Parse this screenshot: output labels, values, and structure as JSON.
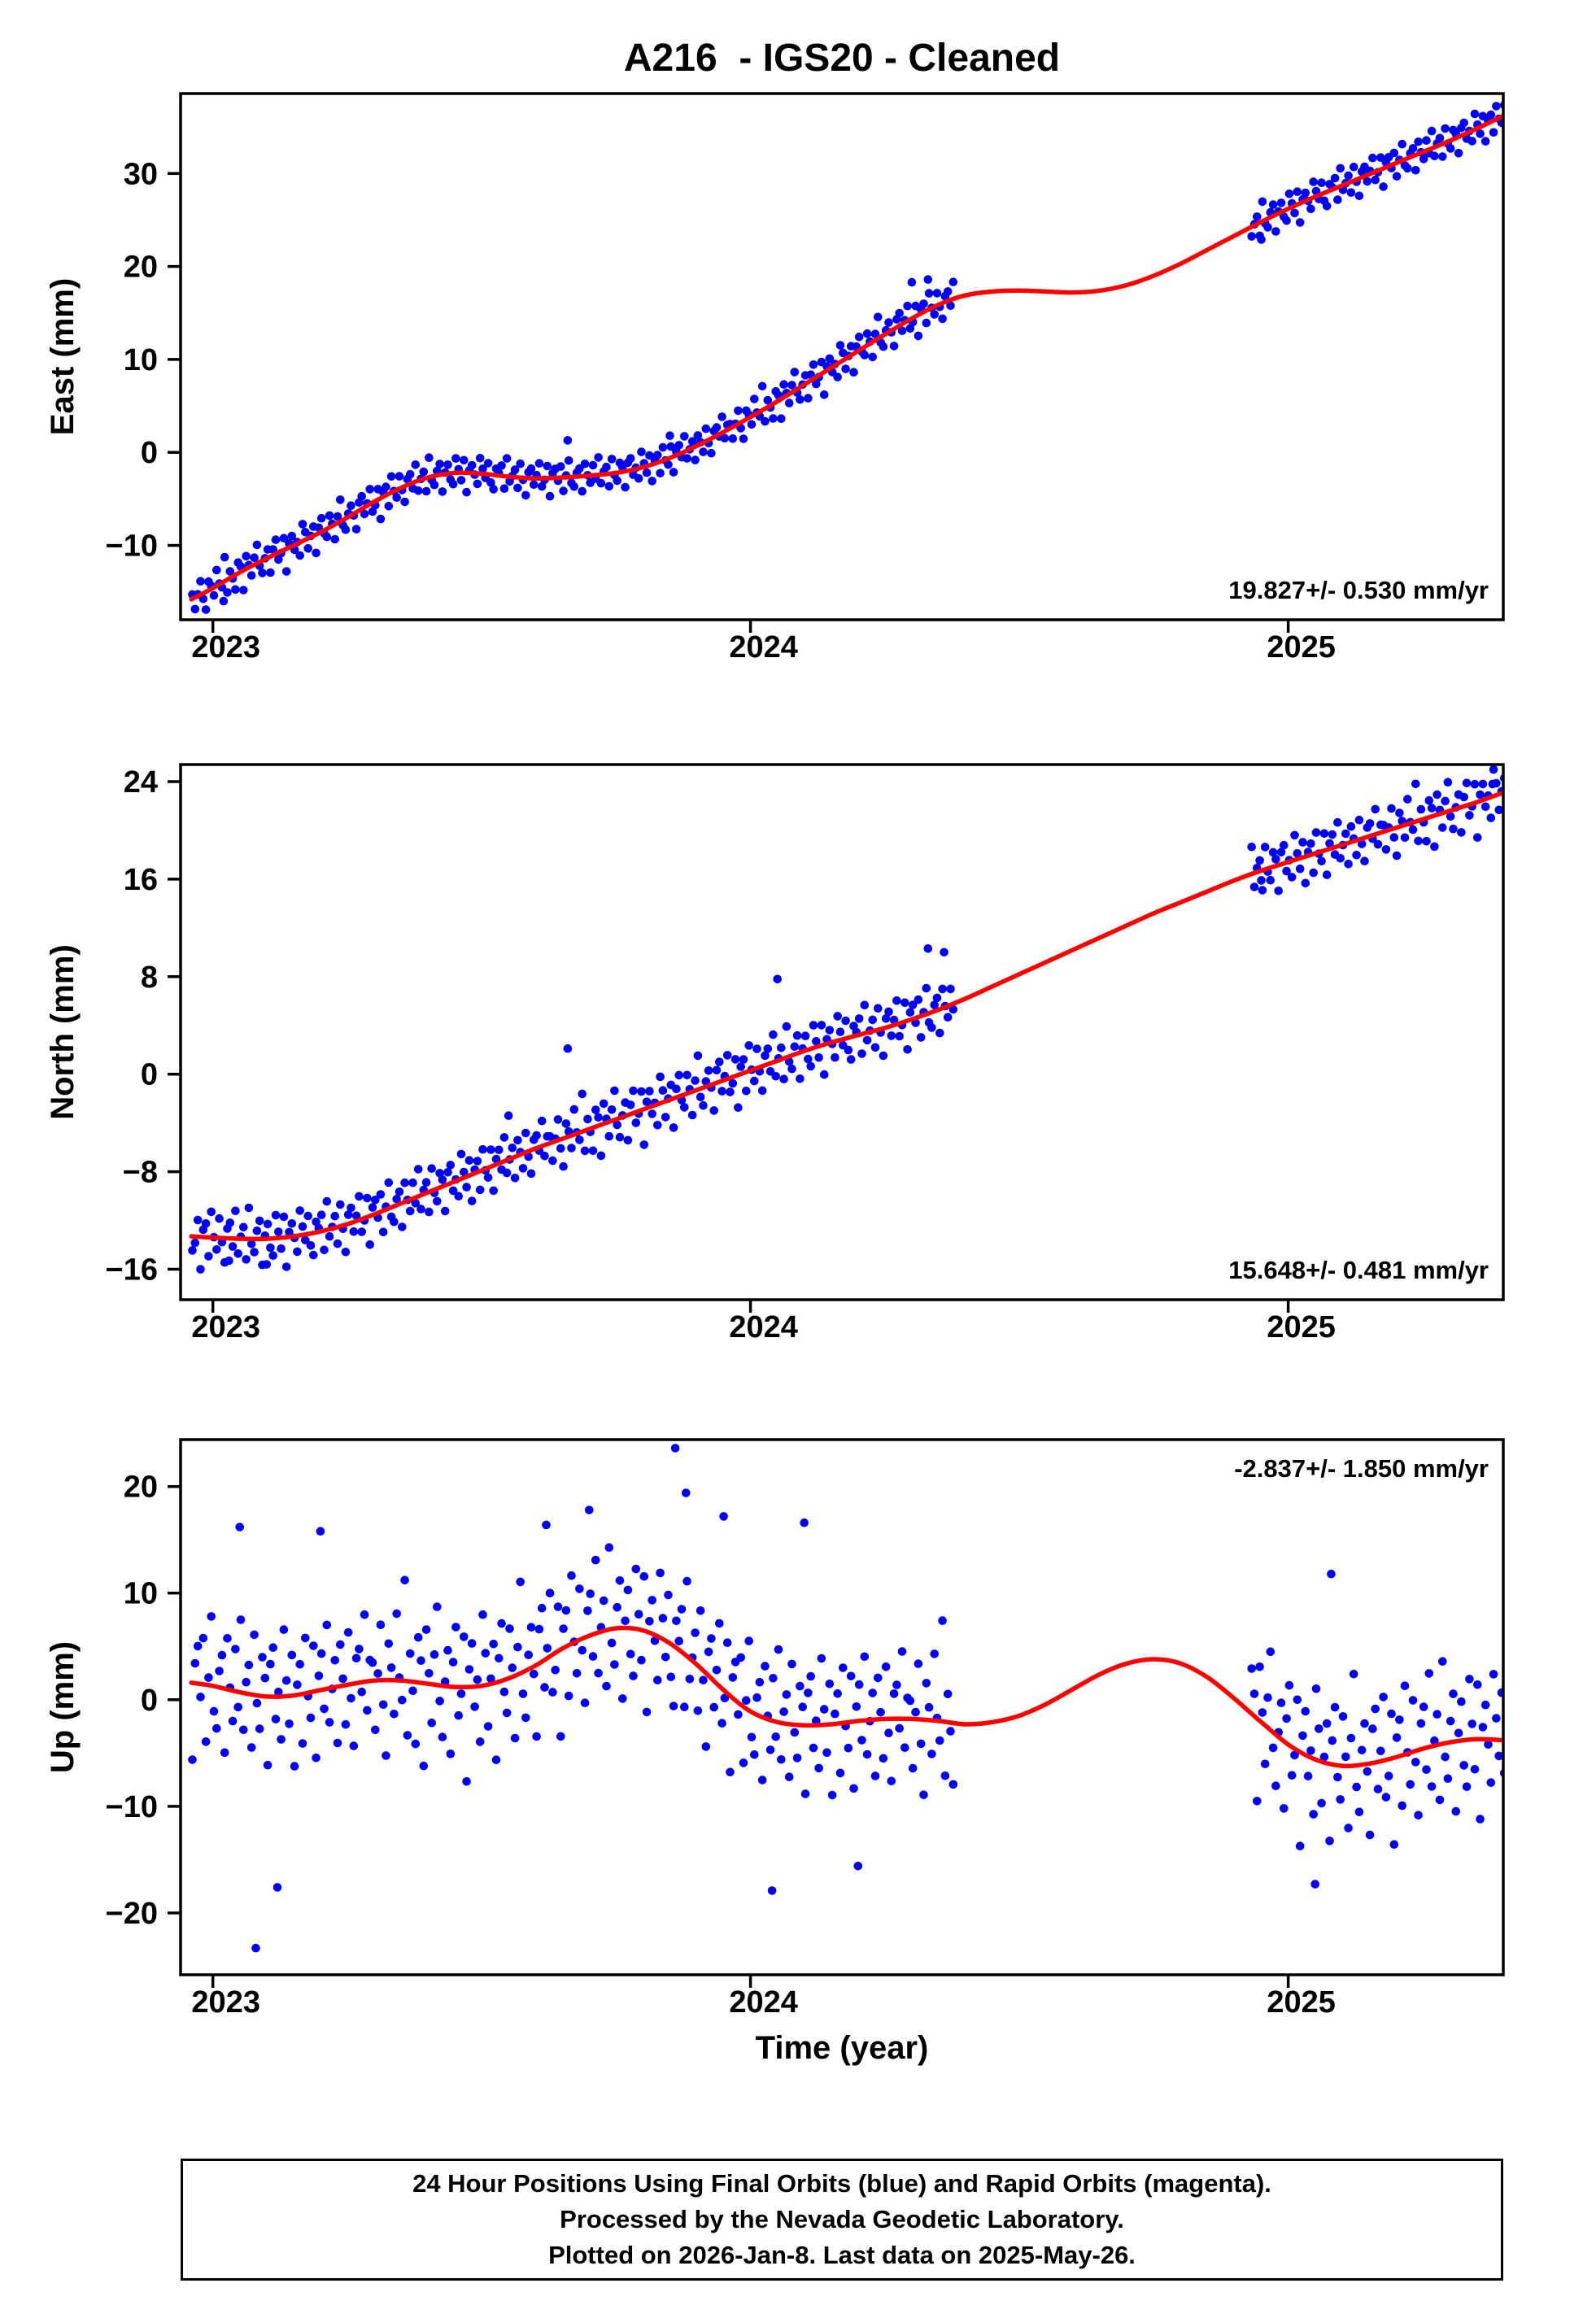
{
  "title": "A216  - IGS20 - Cleaned",
  "xlabel": "Time (year)",
  "footer": {
    "lines": [
      "24 Hour Positions Using Final Orbits (blue) and Rapid Orbits (magenta).",
      "Processed by the Nevada Geodetic Laboratory.",
      "Plotted on 2026-Jan-8. Last data on 2025-May-26."
    ]
  },
  "colors": {
    "points": "#0000EE",
    "line": "#FF0000",
    "frame": "#000000"
  },
  "noise": [
    0.31,
    -0.84,
    0.12,
    0.95,
    -0.41,
    -1.28,
    0.63,
    0.22,
    -0.57,
    1.14,
    0.05,
    -0.33,
    1.72,
    -0.92,
    0.48,
    -0.15,
    -1.05,
    0.77,
    0.38,
    -1.41,
    0.92,
    0.18,
    -0.66,
    0.51,
    1.33,
    -0.27,
    -0.88,
    0.07,
    0.61,
    -1.15,
    0.42,
    1.02,
    -0.49,
    -0.12,
    0.85,
    -1.62,
    0.29,
    0.73,
    -0.35,
    0.11,
    -0.95,
    1.21,
    0.54,
    -0.72,
    0.08,
    0.66,
    -1.33,
    0.39,
    0.97,
    -0.21,
    -0.58,
    0.84,
    0.15,
    -1.07,
    0.46,
    1.55,
    -0.38,
    -0.81,
    0.24,
    0.69,
    -0.13,
    -1.22,
    0.58,
    0.91,
    -0.47,
    0.17,
    1.08,
    -0.64,
    -0.29,
    0.76,
    -1.48,
    0.33,
    0.62,
    -0.86,
    1.17,
    0.02,
    -0.54,
    0.88,
    -0.19,
    -1.11,
    0.44,
    0.71,
    -0.37,
    1.26,
    -0.68,
    0.09,
    0.53,
    -0.94,
    1.41,
    -0.23,
    -0.61,
    0.36,
    0.82,
    -1.19,
    0.14,
    0.67,
    -0.42,
    -0.79,
    1.04,
    0.27,
    -0.51,
    0.93,
    -1.36,
    0.21,
    0.59,
    -0.08,
    -0.73,
    1.12,
    0.37,
    -0.27,
    0.81,
    -0.56,
    -1.02,
    0.47,
    0.16,
    0.74,
    -0.89,
    1.29,
    -0.34,
    0.06,
    0.52,
    -0.77,
    0.98,
    -0.16,
    -1.25,
    0.41,
    0.68,
    -0.45,
    0.23,
    1.07,
    -0.59,
    -0.12,
    0.86,
    -1.31,
    0.34,
    0.64,
    -0.22,
    0.79,
    -0.97,
    0.13,
    1.18,
    -0.43,
    -0.71,
    0.28,
    0.56,
    -1.09,
    0.87,
    0.04,
    -0.52,
    0.72,
    -0.26,
    1.24,
    -0.63,
    0.19,
    0.49,
    -0.91,
    1.02,
    -0.14,
    -0.57,
    0.66,
    0.31,
    -1.17,
    0.55,
    0.83,
    -0.39,
    0.07,
    -0.74,
    1.13,
    0.26,
    -0.48,
    0.69,
    -1.21,
    0.17,
    0.51,
    -0.85,
    0.94,
    -0.06,
    -0.44,
    0.78,
    -1.14,
    0.25,
    0.62,
    -0.33,
    1.09,
    -0.58,
    -0.02,
    0.46,
    -0.96,
    0.71,
    0.12,
    -0.67,
    0.89,
    -0.24,
    -1.06,
    0.43,
    0.58,
    -0.16,
    1.15,
    -0.49,
    0.36
  ],
  "chart_data": [
    {
      "type": "scatter",
      "name": "east",
      "ylabel": "East (mm)",
      "ylim": [
        -18,
        38.6
      ],
      "xlim": [
        2022.94,
        2025.4
      ],
      "yticks": [
        {
          "v": -10,
          "label": "−10"
        },
        {
          "v": 0,
          "label": "0"
        },
        {
          "v": 10,
          "label": "10"
        },
        {
          "v": 20,
          "label": "20"
        },
        {
          "v": 30,
          "label": "30"
        }
      ],
      "xticks": [
        {
          "v": 2023,
          "label": "2023"
        },
        {
          "v": 2024,
          "label": "2024"
        },
        {
          "v": 2025,
          "label": "2025"
        }
      ],
      "annotation": {
        "text": "19.827+/- 0.530 mm/yr",
        "corner": "bottom-right"
      },
      "trend": [
        [
          2022.96,
          -15.8
        ],
        [
          2023.0,
          -14.6
        ],
        [
          2023.05,
          -12.9
        ],
        [
          2023.1,
          -11.4
        ],
        [
          2023.15,
          -10.0
        ],
        [
          2023.2,
          -8.6
        ],
        [
          2023.25,
          -7.0
        ],
        [
          2023.3,
          -5.3
        ],
        [
          2023.35,
          -3.8
        ],
        [
          2023.4,
          -2.7
        ],
        [
          2023.45,
          -2.2
        ],
        [
          2023.5,
          -2.3
        ],
        [
          2023.55,
          -2.6
        ],
        [
          2023.6,
          -2.8
        ],
        [
          2023.65,
          -2.7
        ],
        [
          2023.7,
          -2.5
        ],
        [
          2023.75,
          -2.2
        ],
        [
          2023.8,
          -1.6
        ],
        [
          2023.85,
          -0.6
        ],
        [
          2023.9,
          0.7
        ],
        [
          2023.95,
          2.2
        ],
        [
          2024.0,
          3.8
        ],
        [
          2024.05,
          5.5
        ],
        [
          2024.1,
          7.3
        ],
        [
          2024.15,
          9.1
        ],
        [
          2024.2,
          10.9
        ],
        [
          2024.25,
          12.7
        ],
        [
          2024.3,
          14.4
        ],
        [
          2024.35,
          15.9
        ],
        [
          2024.4,
          16.9
        ],
        [
          2024.45,
          17.3
        ],
        [
          2024.5,
          17.4
        ],
        [
          2024.55,
          17.3
        ],
        [
          2024.6,
          17.2
        ],
        [
          2024.65,
          17.4
        ],
        [
          2024.7,
          18.0
        ],
        [
          2024.75,
          19.0
        ],
        [
          2024.8,
          20.3
        ],
        [
          2024.85,
          21.8
        ],
        [
          2024.9,
          23.3
        ],
        [
          2024.95,
          24.8
        ],
        [
          2025.0,
          26.2
        ],
        [
          2025.05,
          27.5
        ],
        [
          2025.1,
          28.7
        ],
        [
          2025.15,
          29.9
        ],
        [
          2025.2,
          31.1
        ],
        [
          2025.25,
          32.3
        ],
        [
          2025.3,
          33.5
        ],
        [
          2025.35,
          34.8
        ],
        [
          2025.4,
          36.2
        ]
      ],
      "scatter": {
        "segments": [
          [
            2022.962,
            2024.38
          ],
          [
            2024.932,
            2025.403
          ]
        ],
        "step": 0.005,
        "sigma": 1.5,
        "noise_offset": 0
      },
      "extra_points": [
        [
          2023.02,
          -16.0
        ],
        [
          2023.66,
          1.3
        ],
        [
          2023.85,
          1.8
        ],
        [
          2024.3,
          18.3
        ],
        [
          2024.33,
          18.6
        ],
        [
          2024.95,
          22.9
        ]
      ]
    },
    {
      "type": "scatter",
      "name": "north",
      "ylabel": "North (mm)",
      "ylim": [
        -18.5,
        25.4
      ],
      "xlim": [
        2022.94,
        2025.4
      ],
      "yticks": [
        {
          "v": -16,
          "label": "−16"
        },
        {
          "v": -8,
          "label": "−8"
        },
        {
          "v": 0,
          "label": "0"
        },
        {
          "v": 8,
          "label": "8"
        },
        {
          "v": 16,
          "label": "16"
        },
        {
          "v": 24,
          "label": "24"
        }
      ],
      "xticks": [
        {
          "v": 2023,
          "label": "2023"
        },
        {
          "v": 2024,
          "label": "2024"
        },
        {
          "v": 2025,
          "label": "2025"
        }
      ],
      "annotation": {
        "text": "15.648+/- 0.481 mm/yr",
        "corner": "bottom-right"
      },
      "trend": [
        [
          2022.96,
          -13.3
        ],
        [
          2023.0,
          -13.4
        ],
        [
          2023.05,
          -13.5
        ],
        [
          2023.1,
          -13.5
        ],
        [
          2023.15,
          -13.3
        ],
        [
          2023.2,
          -12.9
        ],
        [
          2023.25,
          -12.3
        ],
        [
          2023.3,
          -11.5
        ],
        [
          2023.35,
          -10.6
        ],
        [
          2023.4,
          -9.7
        ],
        [
          2023.45,
          -8.8
        ],
        [
          2023.5,
          -7.9
        ],
        [
          2023.55,
          -7.0
        ],
        [
          2023.6,
          -6.1
        ],
        [
          2023.65,
          -5.3
        ],
        [
          2023.7,
          -4.5
        ],
        [
          2023.75,
          -3.7
        ],
        [
          2023.8,
          -2.9
        ],
        [
          2023.85,
          -2.1
        ],
        [
          2023.9,
          -1.3
        ],
        [
          2023.95,
          -0.5
        ],
        [
          2024.0,
          0.3
        ],
        [
          2024.05,
          1.1
        ],
        [
          2024.1,
          1.9
        ],
        [
          2024.15,
          2.6
        ],
        [
          2024.2,
          3.2
        ],
        [
          2024.25,
          3.8
        ],
        [
          2024.3,
          4.5
        ],
        [
          2024.35,
          5.3
        ],
        [
          2024.4,
          6.2
        ],
        [
          2024.45,
          7.2
        ],
        [
          2024.5,
          8.2
        ],
        [
          2024.55,
          9.2
        ],
        [
          2024.6,
          10.2
        ],
        [
          2024.65,
          11.2
        ],
        [
          2024.7,
          12.2
        ],
        [
          2024.75,
          13.2
        ],
        [
          2024.8,
          14.1
        ],
        [
          2024.85,
          15.0
        ],
        [
          2024.9,
          15.9
        ],
        [
          2024.95,
          16.7
        ],
        [
          2025.0,
          17.4
        ],
        [
          2025.05,
          18.1
        ],
        [
          2025.1,
          18.8
        ],
        [
          2025.15,
          19.5
        ],
        [
          2025.2,
          20.2
        ],
        [
          2025.25,
          20.9
        ],
        [
          2025.3,
          21.6
        ],
        [
          2025.35,
          22.3
        ],
        [
          2025.4,
          23.1
        ]
      ],
      "scatter": {
        "segments": [
          [
            2022.962,
            2024.38
          ],
          [
            2024.932,
            2025.403
          ]
        ],
        "step": 0.005,
        "sigma": 1.8,
        "noise_offset": 67
      },
      "extra_points": [
        [
          2023.03,
          -15.3
        ],
        [
          2023.1,
          -15.6
        ],
        [
          2023.55,
          -3.4
        ],
        [
          2023.66,
          2.1
        ],
        [
          2024.05,
          7.8
        ],
        [
          2024.33,
          10.3
        ],
        [
          2024.36,
          10.0
        ],
        [
          2024.95,
          15.9
        ],
        [
          2025.38,
          23.8
        ]
      ]
    },
    {
      "type": "scatter",
      "name": "up",
      "ylabel": "Up (mm)",
      "ylim": [
        -25.8,
        24.4
      ],
      "xlim": [
        2022.94,
        2025.4
      ],
      "yticks": [
        {
          "v": -20,
          "label": "−20"
        },
        {
          "v": -10,
          "label": "−10"
        },
        {
          "v": 0,
          "label": "0"
        },
        {
          "v": 10,
          "label": "10"
        },
        {
          "v": 20,
          "label": "20"
        }
      ],
      "xticks": [
        {
          "v": 2023,
          "label": "2023"
        },
        {
          "v": 2024,
          "label": "2024"
        },
        {
          "v": 2025,
          "label": "2025"
        }
      ],
      "annotation": {
        "text": "-2.837+/- 1.850 mm/yr",
        "corner": "top-right"
      },
      "trend": [
        [
          2022.96,
          1.6
        ],
        [
          2023.0,
          1.3
        ],
        [
          2023.05,
          0.7
        ],
        [
          2023.1,
          0.3
        ],
        [
          2023.15,
          0.4
        ],
        [
          2023.2,
          0.9
        ],
        [
          2023.25,
          1.4
        ],
        [
          2023.3,
          1.8
        ],
        [
          2023.35,
          1.8
        ],
        [
          2023.4,
          1.5
        ],
        [
          2023.45,
          1.2
        ],
        [
          2023.5,
          1.3
        ],
        [
          2023.55,
          2.0
        ],
        [
          2023.6,
          3.2
        ],
        [
          2023.65,
          4.8
        ],
        [
          2023.7,
          6.0
        ],
        [
          2023.75,
          6.7
        ],
        [
          2023.8,
          6.5
        ],
        [
          2023.85,
          5.3
        ],
        [
          2023.9,
          3.3
        ],
        [
          2023.95,
          0.9
        ],
        [
          2024.0,
          -1.1
        ],
        [
          2024.05,
          -2.1
        ],
        [
          2024.1,
          -2.4
        ],
        [
          2024.15,
          -2.3
        ],
        [
          2024.2,
          -2.0
        ],
        [
          2024.25,
          -1.8
        ],
        [
          2024.3,
          -1.8
        ],
        [
          2024.35,
          -2.0
        ],
        [
          2024.4,
          -2.3
        ],
        [
          2024.45,
          -2.1
        ],
        [
          2024.5,
          -1.5
        ],
        [
          2024.55,
          -0.4
        ],
        [
          2024.6,
          1.0
        ],
        [
          2024.65,
          2.4
        ],
        [
          2024.7,
          3.4
        ],
        [
          2024.75,
          3.8
        ],
        [
          2024.8,
          3.4
        ],
        [
          2024.85,
          2.1
        ],
        [
          2024.9,
          0.1
        ],
        [
          2024.95,
          -2.1
        ],
        [
          2025.0,
          -4.2
        ],
        [
          2025.05,
          -5.6
        ],
        [
          2025.1,
          -6.2
        ],
        [
          2025.15,
          -6.0
        ],
        [
          2025.2,
          -5.4
        ],
        [
          2025.25,
          -4.6
        ],
        [
          2025.3,
          -4.0
        ],
        [
          2025.35,
          -3.7
        ],
        [
          2025.4,
          -3.8
        ]
      ],
      "scatter": {
        "segments": [
          [
            2022.962,
            2024.38
          ],
          [
            2024.932,
            2025.403
          ]
        ],
        "step": 0.005,
        "sigma": 5.5,
        "noise_offset": 133
      },
      "extra_points": [
        [
          2023.05,
          16.2
        ],
        [
          2023.08,
          -23.3
        ],
        [
          2023.12,
          -17.6
        ],
        [
          2023.2,
          15.8
        ],
        [
          2023.62,
          16.4
        ],
        [
          2023.7,
          17.8
        ],
        [
          2023.86,
          23.6
        ],
        [
          2023.88,
          19.4
        ],
        [
          2023.95,
          17.2
        ],
        [
          2024.04,
          -17.9
        ],
        [
          2024.1,
          16.6
        ],
        [
          2024.2,
          -15.6
        ],
        [
          2025.05,
          -17.3
        ],
        [
          2025.08,
          11.8
        ]
      ]
    }
  ]
}
